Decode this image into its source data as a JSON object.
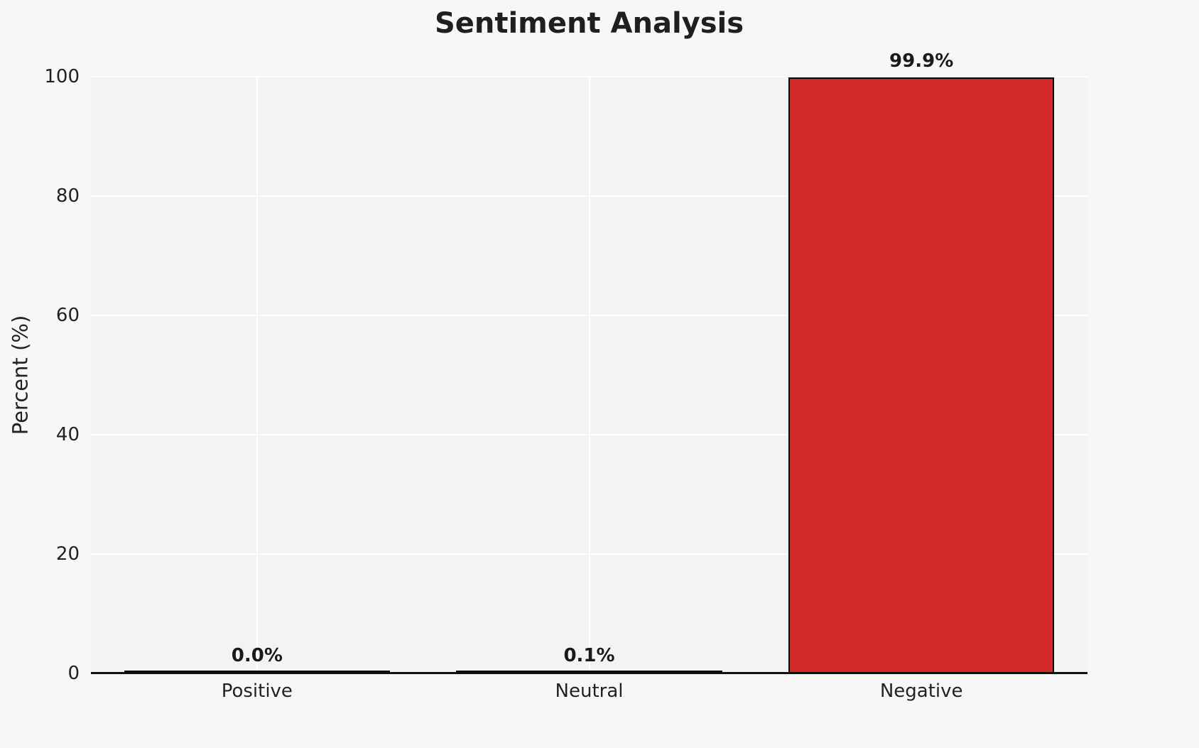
{
  "chart_data": {
    "type": "bar",
    "title": "Sentiment Analysis",
    "categories": [
      "Positive",
      "Neutral",
      "Negative"
    ],
    "values": [
      0.0,
      0.1,
      99.9
    ],
    "value_labels": [
      "0.0%",
      "0.1%",
      "99.9%"
    ],
    "xlabel": "",
    "ylabel": "Percent (%)",
    "ylim": [
      0,
      100
    ],
    "yticks": [
      0,
      20,
      40,
      60,
      80,
      100
    ],
    "grid": true,
    "legend": false,
    "bar_color": "#d32929",
    "bar_edge_color": "#000000",
    "figure_bg": "#f7f7f8",
    "axes_bg": "#f3f3f5",
    "grid_color": "#ffffff",
    "axis_line_color": "#111111"
  }
}
